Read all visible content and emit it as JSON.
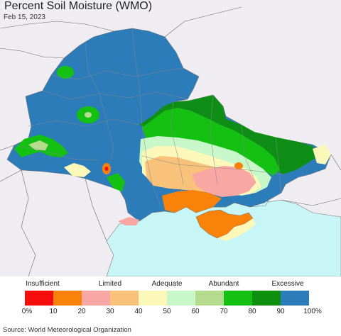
{
  "title": "Percent Soil Moisture (WMO)",
  "date": "Feb 15, 2023",
  "source": "Source: World Meteorological Organization",
  "colors": {
    "background_land": "#efedf2",
    "sea": "#c8f6f6",
    "border": "#777777"
  },
  "legend": {
    "categories": [
      "Insufficient",
      "Limited",
      "Adequate",
      "Abundant",
      "Excessive"
    ],
    "ticks": [
      "0%",
      "10",
      "20",
      "30",
      "40",
      "50",
      "60",
      "70",
      "80",
      "90",
      "100%"
    ],
    "colors": [
      "#f70c0c",
      "#f9820b",
      "#f9a7a5",
      "#f9c27a",
      "#fbf8b9",
      "#c8f8c9",
      "#b5dc8e",
      "#14c012",
      "#0e8f0e",
      "#2c7cba"
    ]
  }
}
